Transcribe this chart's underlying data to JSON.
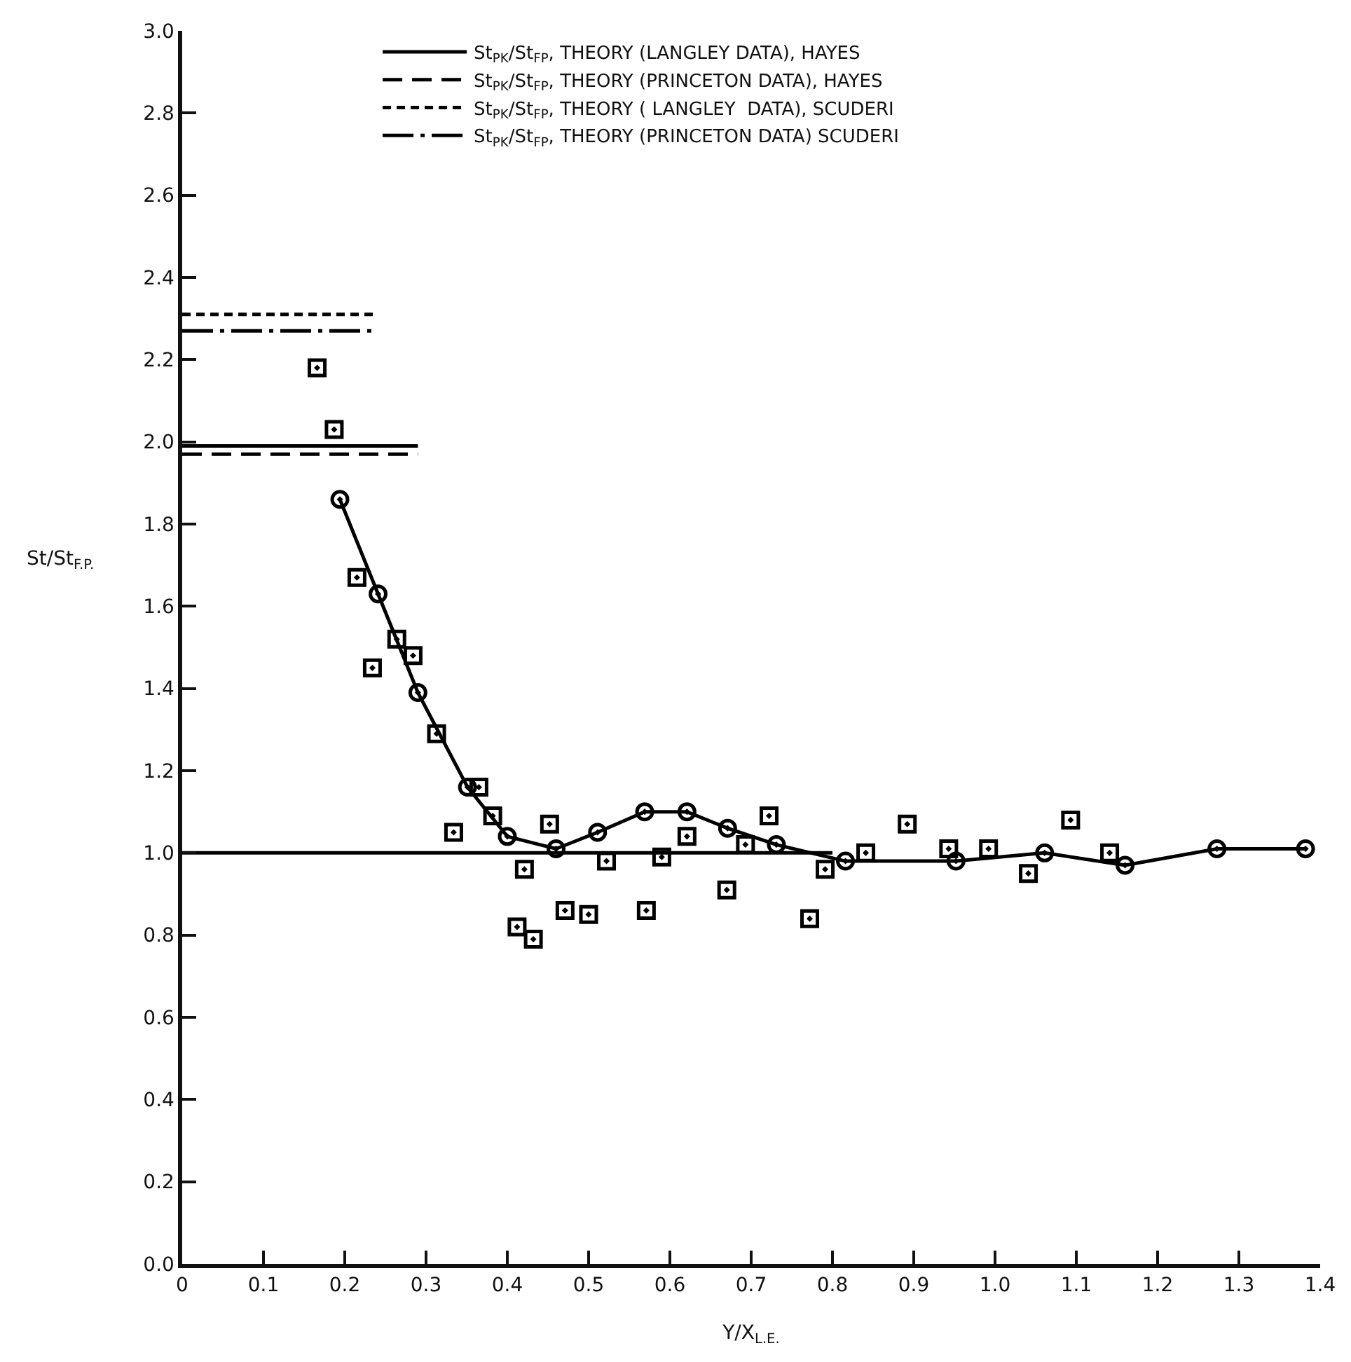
{
  "chart_data": {
    "type": "line",
    "xlabel": "Y/X$_{L.E.}$",
    "ylabel": "St/St$_{F.P.}$",
    "xlim": [
      0,
      1.4
    ],
    "ylim": [
      0,
      3.0
    ],
    "xticks": [
      {
        "value": 0,
        "label": "0"
      },
      0.1,
      0.2,
      0.3,
      0.4,
      0.5,
      0.6,
      0.7,
      0.8,
      0.9,
      {
        "value": 1,
        "label": "1.0"
      },
      1.1,
      1.2,
      1.3,
      1.4
    ],
    "yticks": [
      {
        "value": 0,
        "label": "0.0"
      },
      0.2,
      0.4,
      0.6,
      0.8,
      {
        "value": 1,
        "label": "1.0"
      },
      1.2,
      1.4,
      1.6,
      1.8,
      {
        "value": 2,
        "label": "2.0"
      },
      2.2,
      2.4,
      2.6,
      2.8,
      {
        "value": 3,
        "label": "3.0"
      }
    ],
    "grid": false,
    "legend": "top",
    "series": [
      {
        "name": "St$_{PK}$/St$_{FP}$, THEORY (LANGLEY DATA), HAYES",
        "color": "#000000",
        "line_style": "solid",
        "marker": "none",
        "x": [
          0,
          0.29
        ],
        "values": [
          1.99,
          1.99
        ]
      },
      {
        "name": "St$_{PK}$/St$_{FP}$, THEORY (PRINCETON DATA), HAYES",
        "color": "#000000",
        "line_style": "dashed",
        "marker": "none",
        "x": [
          0,
          0.29
        ],
        "values": [
          1.97,
          1.97
        ]
      },
      {
        "name": "St$_{PK}$/St$_{FP}$, THEORY ( LANGLEY  DATA), SCUDERI",
        "color": "#000000",
        "line_style": "dotted",
        "marker": "none",
        "x": [
          0,
          0.24
        ],
        "values": [
          2.31,
          2.31
        ]
      },
      {
        "name": "St$_{PK}$/St$_{FP}$, THEORY (PRINCETON DATA) SCUDERI",
        "color": "#000000",
        "line_style": "dashdot",
        "marker": "none",
        "x": [
          0,
          0.24
        ],
        "values": [
          2.27,
          2.27
        ]
      },
      {
        "color": "#000000",
        "line_style": "solid",
        "marker": "none",
        "x": [
          0,
          0.8
        ],
        "values": [
          1.0,
          1.0
        ]
      },
      {
        "color": "#000000",
        "line_style": "solid",
        "marker": "circle",
        "x": [
          0.194,
          0.241,
          0.29,
          0.351,
          0.4,
          0.46,
          0.511,
          0.569,
          0.621,
          0.671,
          0.731,
          0.816,
          0.952,
          1.061,
          1.16,
          1.273,
          1.382
        ],
        "values": [
          1.86,
          1.63,
          1.39,
          1.16,
          1.04,
          1.01,
          1.05,
          1.1,
          1.1,
          1.06,
          1.02,
          0.98,
          0.98,
          1.0,
          0.97,
          1.01,
          1.01
        ]
      },
      {
        "type": "scatter",
        "color": "#000000",
        "marker": "square",
        "x": [
          0.166,
          0.187,
          0.215,
          0.234,
          0.264,
          0.284,
          0.313,
          0.334,
          0.365,
          0.382,
          0.412,
          0.421,
          0.432,
          0.452,
          0.471,
          0.5,
          0.522,
          0.571,
          0.59,
          0.621,
          0.67,
          0.693,
          0.722,
          0.772,
          0.791,
          0.841,
          0.892,
          0.943,
          0.992,
          1.041,
          1.093,
          1.141
        ],
        "values": [
          2.18,
          2.03,
          1.67,
          1.45,
          1.52,
          1.48,
          1.29,
          1.05,
          1.16,
          1.09,
          0.82,
          0.96,
          0.79,
          1.07,
          0.86,
          0.85,
          0.98,
          0.86,
          0.99,
          1.04,
          0.91,
          1.02,
          1.09,
          0.84,
          0.96,
          1.0,
          1.07,
          1.01,
          1.01,
          0.95,
          1.08,
          1.0
        ]
      }
    ]
  }
}
